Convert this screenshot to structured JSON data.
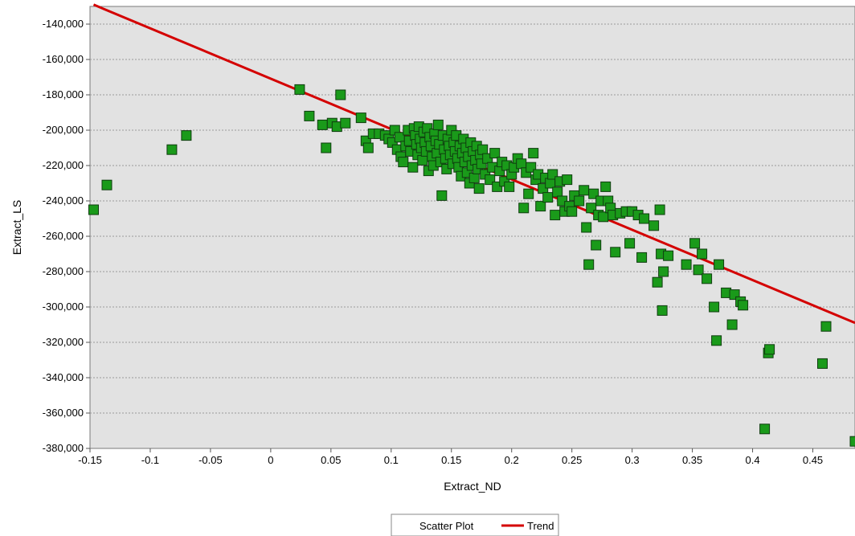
{
  "chart_data": {
    "type": "scatter",
    "title": "",
    "xlabel": "Extract_ND",
    "ylabel": "Extract_LS",
    "xlim": [
      -0.15,
      0.485
    ],
    "ylim": [
      -380000,
      -130000
    ],
    "x_ticks": [
      -0.15,
      -0.1,
      -0.05,
      0,
      0.05,
      0.1,
      0.15,
      0.2,
      0.25,
      0.3,
      0.35,
      0.4,
      0.45
    ],
    "x_tick_labels": [
      "-0.15",
      "-0.1",
      "-0.05",
      "0",
      "0.05",
      "0.1",
      "0.15",
      "0.2",
      "0.25",
      "0.3",
      "0.35",
      "0.4",
      "0.45"
    ],
    "y_ticks": [
      -380000,
      -360000,
      -340000,
      -320000,
      -300000,
      -280000,
      -260000,
      -240000,
      -220000,
      -200000,
      -180000,
      -160000,
      -140000
    ],
    "y_tick_labels": [
      "-380,000",
      "-360,000",
      "-340,000",
      "-320,000",
      "-300,000",
      "-280,000",
      "-260,000",
      "-240,000",
      "-220,000",
      "-200,000",
      "-180,000",
      "-160,000",
      "-140,000"
    ],
    "grid": "horizontal dashed",
    "background_color": "#e2e2e2",
    "legend": {
      "placement": "bottom-center",
      "entries": [
        {
          "label": "Scatter Plot",
          "marker": "none"
        },
        {
          "label": "Trend",
          "marker": "line",
          "color": "#d40000"
        }
      ]
    },
    "series": [
      {
        "name": "Scatter Plot",
        "marker": "square",
        "color": "#1a9a1a",
        "edge_color": "#0f3d0f",
        "points": [
          [
            -0.147,
            -245000
          ],
          [
            -0.136,
            -231000
          ],
          [
            -0.082,
            -211000
          ],
          [
            -0.07,
            -203000
          ],
          [
            0.024,
            -177000
          ],
          [
            0.032,
            -192000
          ],
          [
            0.043,
            -197000
          ],
          [
            0.046,
            -210000
          ],
          [
            0.051,
            -196000
          ],
          [
            0.055,
            -198000
          ],
          [
            0.058,
            -180000
          ],
          [
            0.062,
            -196000
          ],
          [
            0.075,
            -193000
          ],
          [
            0.079,
            -206000
          ],
          [
            0.081,
            -210000
          ],
          [
            0.085,
            -202000
          ],
          [
            0.09,
            -202000
          ],
          [
            0.095,
            -203000
          ],
          [
            0.098,
            -205000
          ],
          [
            0.101,
            -207000
          ],
          [
            0.103,
            -200000
          ],
          [
            0.105,
            -211000
          ],
          [
            0.107,
            -204000
          ],
          [
            0.108,
            -215000
          ],
          [
            0.11,
            -218000
          ],
          [
            0.112,
            -209000
          ],
          [
            0.114,
            -200000
          ],
          [
            0.115,
            -206000
          ],
          [
            0.116,
            -212000
          ],
          [
            0.118,
            -221000
          ],
          [
            0.119,
            -199000
          ],
          [
            0.12,
            -203000
          ],
          [
            0.121,
            -208000
          ],
          [
            0.122,
            -214000
          ],
          [
            0.123,
            -198000
          ],
          [
            0.124,
            -205000
          ],
          [
            0.125,
            -210000
          ],
          [
            0.126,
            -217000
          ],
          [
            0.127,
            -201000
          ],
          [
            0.128,
            -207000
          ],
          [
            0.129,
            -212000
          ],
          [
            0.13,
            -199000
          ],
          [
            0.131,
            -223000
          ],
          [
            0.132,
            -204000
          ],
          [
            0.133,
            -209000
          ],
          [
            0.134,
            -215000
          ],
          [
            0.135,
            -220000
          ],
          [
            0.136,
            -202000
          ],
          [
            0.137,
            -206000
          ],
          [
            0.138,
            -213000
          ],
          [
            0.139,
            -197000
          ],
          [
            0.14,
            -208000
          ],
          [
            0.141,
            -218000
          ],
          [
            0.142,
            -237000
          ],
          [
            0.143,
            -203000
          ],
          [
            0.144,
            -211000
          ],
          [
            0.145,
            -216000
          ],
          [
            0.146,
            -222000
          ],
          [
            0.147,
            -205000
          ],
          [
            0.148,
            -209000
          ],
          [
            0.149,
            -214000
          ],
          [
            0.15,
            -200000
          ],
          [
            0.151,
            -219000
          ],
          [
            0.152,
            -207000
          ],
          [
            0.153,
            -212000
          ],
          [
            0.154,
            -203000
          ],
          [
            0.155,
            -216000
          ],
          [
            0.156,
            -221000
          ],
          [
            0.157,
            -209000
          ],
          [
            0.158,
            -226000
          ],
          [
            0.159,
            -213000
          ],
          [
            0.16,
            -205000
          ],
          [
            0.161,
            -218000
          ],
          [
            0.162,
            -210000
          ],
          [
            0.163,
            -224000
          ],
          [
            0.164,
            -215000
          ],
          [
            0.165,
            -230000
          ],
          [
            0.166,
            -207000
          ],
          [
            0.167,
            -220000
          ],
          [
            0.168,
            -212000
          ],
          [
            0.169,
            -227000
          ],
          [
            0.17,
            -217000
          ],
          [
            0.171,
            -209000
          ],
          [
            0.172,
            -222000
          ],
          [
            0.173,
            -233000
          ],
          [
            0.174,
            -214000
          ],
          [
            0.175,
            -219000
          ],
          [
            0.176,
            -211000
          ],
          [
            0.178,
            -225000
          ],
          [
            0.18,
            -216000
          ],
          [
            0.182,
            -228000
          ],
          [
            0.184,
            -221000
          ],
          [
            0.186,
            -213000
          ],
          [
            0.188,
            -232000
          ],
          [
            0.19,
            -223000
          ],
          [
            0.192,
            -218000
          ],
          [
            0.194,
            -229000
          ],
          [
            0.196,
            -220000
          ],
          [
            0.198,
            -232000
          ],
          [
            0.2,
            -225000
          ],
          [
            0.202,
            -221000
          ],
          [
            0.205,
            -216000
          ],
          [
            0.208,
            -219000
          ],
          [
            0.21,
            -244000
          ],
          [
            0.212,
            -224000
          ],
          [
            0.214,
            -236000
          ],
          [
            0.216,
            -221000
          ],
          [
            0.218,
            -213000
          ],
          [
            0.22,
            -228000
          ],
          [
            0.222,
            -225000
          ],
          [
            0.224,
            -243000
          ],
          [
            0.226,
            -233000
          ],
          [
            0.228,
            -227000
          ],
          [
            0.23,
            -238000
          ],
          [
            0.232,
            -230000
          ],
          [
            0.234,
            -225000
          ],
          [
            0.236,
            -248000
          ],
          [
            0.238,
            -235000
          ],
          [
            0.24,
            -229000
          ],
          [
            0.242,
            -240000
          ],
          [
            0.244,
            -246000
          ],
          [
            0.246,
            -228000
          ],
          [
            0.248,
            -243000
          ],
          [
            0.25,
            -246000
          ],
          [
            0.252,
            -237000
          ],
          [
            0.256,
            -240000
          ],
          [
            0.26,
            -234000
          ],
          [
            0.262,
            -255000
          ],
          [
            0.264,
            -276000
          ],
          [
            0.266,
            -244000
          ],
          [
            0.268,
            -236000
          ],
          [
            0.27,
            -265000
          ],
          [
            0.272,
            -248000
          ],
          [
            0.274,
            -240000
          ],
          [
            0.276,
            -249000
          ],
          [
            0.278,
            -232000
          ],
          [
            0.28,
            -240000
          ],
          [
            0.282,
            -244000
          ],
          [
            0.284,
            -248000
          ],
          [
            0.286,
            -269000
          ],
          [
            0.29,
            -247000
          ],
          [
            0.295,
            -246000
          ],
          [
            0.298,
            -264000
          ],
          [
            0.3,
            -246000
          ],
          [
            0.305,
            -248000
          ],
          [
            0.308,
            -272000
          ],
          [
            0.31,
            -250000
          ],
          [
            0.318,
            -254000
          ],
          [
            0.321,
            -286000
          ],
          [
            0.323,
            -245000
          ],
          [
            0.324,
            -270000
          ],
          [
            0.325,
            -302000
          ],
          [
            0.326,
            -280000
          ],
          [
            0.33,
            -271000
          ],
          [
            0.345,
            -276000
          ],
          [
            0.352,
            -264000
          ],
          [
            0.355,
            -279000
          ],
          [
            0.358,
            -270000
          ],
          [
            0.362,
            -284000
          ],
          [
            0.368,
            -300000
          ],
          [
            0.37,
            -319000
          ],
          [
            0.372,
            -276000
          ],
          [
            0.378,
            -292000
          ],
          [
            0.383,
            -310000
          ],
          [
            0.385,
            -293000
          ],
          [
            0.39,
            -297000
          ],
          [
            0.392,
            -299000
          ],
          [
            0.41,
            -369000
          ],
          [
            0.413,
            -326000
          ],
          [
            0.414,
            -324000
          ],
          [
            0.458,
            -332000
          ],
          [
            0.461,
            -311000
          ],
          [
            0.485,
            -376000
          ]
        ]
      },
      {
        "name": "Trend",
        "type": "line",
        "color": "#d40000",
        "points": [
          [
            -0.147,
            -129000
          ],
          [
            0.485,
            -309000
          ]
        ]
      }
    ]
  }
}
